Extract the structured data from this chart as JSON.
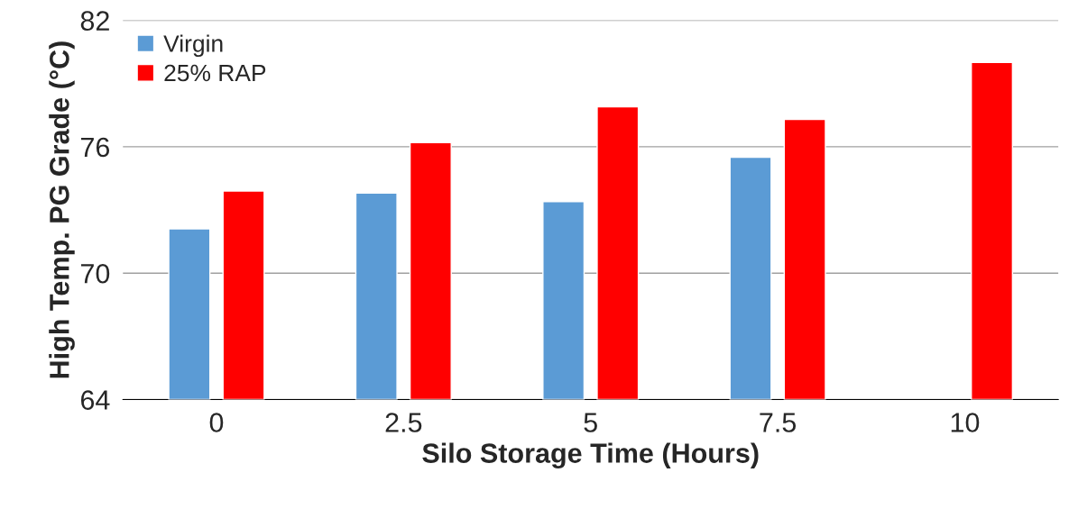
{
  "chart_data": {
    "type": "bar",
    "xlabel": "Silo Storage Time (Hours)",
    "ylabel": "High Temp. PG Grade (°C)",
    "categories": [
      "0",
      "2.5",
      "5",
      "7.5",
      "10"
    ],
    "series": [
      {
        "name": "Virgin",
        "color": "#5b9bd5",
        "values": [
          72.1,
          73.8,
          73.4,
          75.5,
          null
        ]
      },
      {
        "name": "25% RAP",
        "color": "#ff0000",
        "values": [
          73.9,
          76.2,
          77.9,
          77.3,
          80.0
        ]
      }
    ],
    "ylim": [
      64,
      82
    ],
    "yticks": [
      64,
      70,
      76,
      82
    ],
    "grid": "y",
    "legend": "top left"
  }
}
